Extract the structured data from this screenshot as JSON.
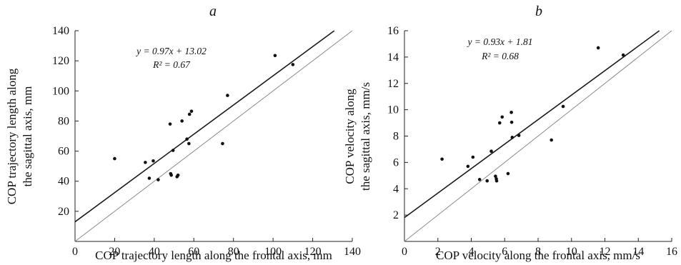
{
  "chart_data": [
    {
      "type": "scatter",
      "panel": "a",
      "xlabel": "COP trajectory length along the frontal axis, mm",
      "ylabel_lines": [
        "COP trajectory length along",
        "the sagittal axis, mm"
      ],
      "xlim": [
        0,
        140
      ],
      "ylim": [
        0,
        140
      ],
      "xticks": [
        0,
        20,
        40,
        60,
        80,
        100,
        120,
        140
      ],
      "yticks": [
        20,
        40,
        60,
        80,
        100,
        120,
        140
      ],
      "equation": "y = 0.97x + 13.02",
      "r2": "R² = 0.67",
      "regression": {
        "slope": 0.97,
        "intercept": 13.02
      },
      "identity_line": true,
      "grid": false,
      "points": [
        [
          20,
          55
        ],
        [
          35.5,
          52.5
        ],
        [
          37.5,
          42
        ],
        [
          39.5,
          53.5
        ],
        [
          42,
          41
        ],
        [
          48,
          78
        ],
        [
          48.3,
          45
        ],
        [
          48.6,
          44
        ],
        [
          49.5,
          60.5
        ],
        [
          51.5,
          43
        ],
        [
          52,
          44
        ],
        [
          54,
          80
        ],
        [
          56.5,
          68
        ],
        [
          57.5,
          65
        ],
        [
          57.8,
          84.5
        ],
        [
          58.8,
          86.5
        ],
        [
          74.5,
          65
        ],
        [
          77,
          97
        ],
        [
          101,
          123.5
        ],
        [
          110,
          117.5
        ]
      ]
    },
    {
      "type": "scatter",
      "panel": "b",
      "xlabel": "COP velocity along the frontal axis, mm/s",
      "ylabel_lines": [
        "COP velocity along",
        "the sagittal axis, mm/s"
      ],
      "xlim": [
        0,
        16
      ],
      "ylim": [
        0,
        16
      ],
      "xticks": [
        0,
        2,
        4,
        6,
        8,
        10,
        12,
        14,
        16
      ],
      "yticks": [
        2,
        4,
        6,
        8,
        10,
        12,
        14,
        16
      ],
      "equation": "y = 0.93x + 1.81",
      "r2": "R² = 0.68",
      "regression": {
        "slope": 0.93,
        "intercept": 1.81
      },
      "identity_line": true,
      "grid": false,
      "points": [
        [
          2.25,
          6.25
        ],
        [
          3.8,
          5.7
        ],
        [
          4.1,
          6.4
        ],
        [
          4.5,
          4.7
        ],
        [
          4.95,
          4.6
        ],
        [
          5.2,
          6.85
        ],
        [
          5.45,
          4.95
        ],
        [
          5.5,
          4.75
        ],
        [
          5.52,
          4.6
        ],
        [
          5.7,
          9.0
        ],
        [
          5.85,
          9.45
        ],
        [
          6.2,
          5.15
        ],
        [
          6.4,
          9.8
        ],
        [
          6.42,
          9.05
        ],
        [
          6.45,
          7.9
        ],
        [
          6.85,
          8.05
        ],
        [
          8.8,
          7.7
        ],
        [
          9.5,
          10.25
        ],
        [
          11.6,
          14.7
        ],
        [
          13.1,
          14.15
        ]
      ]
    }
  ]
}
